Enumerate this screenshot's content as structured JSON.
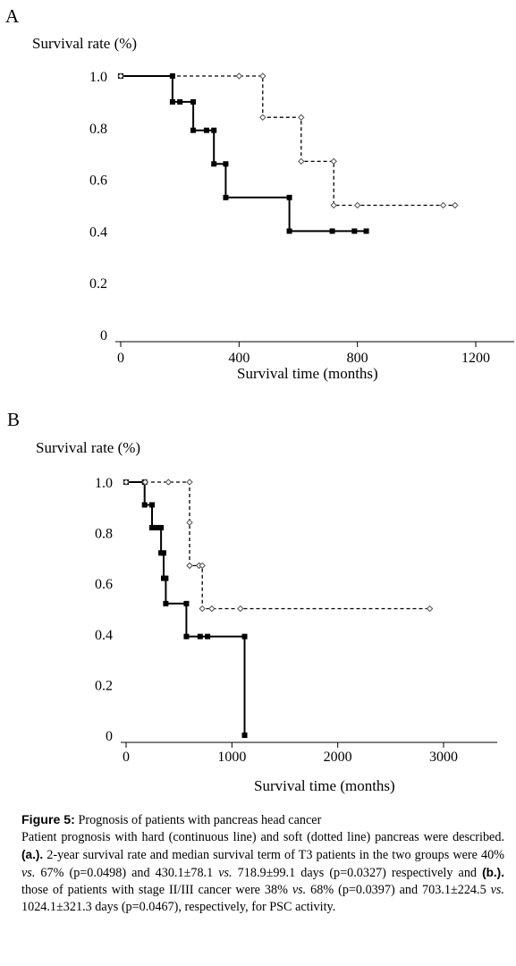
{
  "chart_data": [
    {
      "type": "line",
      "step": true,
      "panel_label": "A",
      "ylabel": "Survival rate (%)",
      "xlabel": "Survival time (months)",
      "xlim": [
        0,
        1200
      ],
      "ylim": [
        0,
        1.0
      ],
      "x_ticks": [
        0,
        400,
        800,
        1200
      ],
      "x_tick_labels": [
        "0",
        "400",
        "800",
        "1200"
      ],
      "y_ticks": [
        0,
        0.2,
        0.4,
        0.6,
        0.8,
        1.0
      ],
      "y_tick_labels": [
        "0",
        "0.2",
        "0.4",
        "0.6",
        "0.8",
        "1.0"
      ],
      "grid": false,
      "legend": "none",
      "series": [
        {
          "style": "solid",
          "marker": "filled-square",
          "color": "#000000",
          "x": [
            0,
            175,
            175,
            200,
            245,
            245,
            290,
            315,
            315,
            355,
            355,
            570,
            570,
            715,
            790,
            830
          ],
          "y": [
            1.0,
            1.0,
            0.9,
            0.9,
            0.9,
            0.79,
            0.79,
            0.79,
            0.66,
            0.66,
            0.53,
            0.53,
            0.4,
            0.4,
            0.4,
            0.4
          ]
        },
        {
          "style": "dashed",
          "marker": "open-diamond",
          "color": "#000000",
          "x": [
            0,
            400,
            480,
            480,
            610,
            610,
            720,
            720,
            800,
            1090,
            1130
          ],
          "y": [
            1.0,
            1.0,
            1.0,
            0.84,
            0.84,
            0.67,
            0.67,
            0.5,
            0.5,
            0.5,
            0.5
          ]
        }
      ]
    },
    {
      "type": "line",
      "step": true,
      "panel_label": "B",
      "ylabel": "Survival rate (%)",
      "xlabel": "Survival time (months)",
      "xlim": [
        0,
        3000
      ],
      "ylim": [
        0,
        1.0
      ],
      "x_ticks": [
        0,
        1000,
        2000,
        3000
      ],
      "x_tick_labels": [
        "0",
        "1000",
        "2000",
        "3000"
      ],
      "y_ticks": [
        0,
        0.2,
        0.4,
        0.6,
        0.8,
        1.0
      ],
      "y_tick_labels": [
        "0",
        "0.2",
        "0.4",
        "0.6",
        "0.8",
        "1.0"
      ],
      "grid": false,
      "legend": "none",
      "series": [
        {
          "style": "solid",
          "marker": "filled-square",
          "color": "#000000",
          "x": [
            0,
            175,
            175,
            245,
            245,
            270,
            300,
            330,
            330,
            355,
            355,
            375,
            375,
            570,
            570,
            700,
            770,
            1120,
            1120
          ],
          "y": [
            1.0,
            1.0,
            0.91,
            0.91,
            0.82,
            0.82,
            0.82,
            0.82,
            0.72,
            0.72,
            0.62,
            0.62,
            0.52,
            0.52,
            0.39,
            0.39,
            0.39,
            0.39,
            0.0
          ]
        },
        {
          "style": "dashed",
          "marker": "open-diamond",
          "color": "#000000",
          "x": [
            0,
            180,
            400,
            600,
            600,
            600,
            600,
            690,
            690,
            720,
            720,
            810,
            1080,
            2870
          ],
          "y": [
            1.0,
            1.0,
            1.0,
            1.0,
            0.84,
            0.67,
            0.67,
            0.67,
            0.67,
            0.67,
            0.5,
            0.5,
            0.5,
            0.5
          ]
        }
      ]
    }
  ],
  "caption": {
    "label": "Figure 5:",
    "title": " Prognosis of patients with pancreas head cancer",
    "parts": [
      {
        "text": "Patient prognosis with hard (continuous line) and soft (dotted line) pancreas were described. ",
        "style": "normal"
      },
      {
        "text": "(a.).",
        "style": "bold"
      },
      {
        "text": " 2-year survival rate and median survival term of T3 patients in the two groups were 40% ",
        "style": "normal"
      },
      {
        "text": "vs.",
        "style": "italic"
      },
      {
        "text": " 67% (p=0.0498) and 430.1±78.1 ",
        "style": "normal"
      },
      {
        "text": "vs.",
        "style": "italic"
      },
      {
        "text": " 718.9±99.1 days (p=0.0327) respectively and ",
        "style": "normal"
      },
      {
        "text": "(b.).",
        "style": "bold"
      },
      {
        "text": " those of patients with stage II/III cancer were 38% ",
        "style": "normal"
      },
      {
        "text": "vs.",
        "style": "italic"
      },
      {
        "text": " 68% (p=0.0397) and 703.1±224.5 ",
        "style": "normal"
      },
      {
        "text": "vs.",
        "style": "italic"
      },
      {
        "text": " 1024.1±321.3 days (p=0.0467), respectively, for PSC activity.",
        "style": "normal"
      }
    ]
  }
}
